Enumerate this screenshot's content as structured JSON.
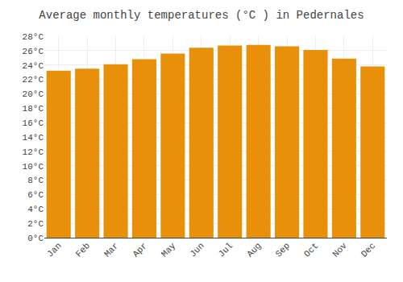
{
  "chart_data": {
    "type": "bar",
    "title": "Average monthly temperatures (°C ) in Pedernales",
    "categories": [
      "Jan",
      "Feb",
      "Mar",
      "Apr",
      "May",
      "Jun",
      "Jul",
      "Aug",
      "Sep",
      "Oct",
      "Nov",
      "Dec"
    ],
    "values": [
      23.2,
      23.5,
      24.1,
      24.8,
      25.6,
      26.4,
      26.7,
      26.8,
      26.6,
      26.1,
      24.9,
      23.8
    ],
    "color": "#E8900A",
    "ylim": [
      0,
      28
    ],
    "yticks": [
      {
        "value": 0,
        "label": "0°C"
      },
      {
        "value": 2,
        "label": "2°C"
      },
      {
        "value": 4,
        "label": "4°C"
      },
      {
        "value": 6,
        "label": "6°C"
      },
      {
        "value": 8,
        "label": "8°C"
      },
      {
        "value": 10,
        "label": "10°C"
      },
      {
        "value": 12,
        "label": "12°C"
      },
      {
        "value": 14,
        "label": "14°C"
      },
      {
        "value": 16,
        "label": "16°C"
      },
      {
        "value": 18,
        "label": "18°C"
      },
      {
        "value": 20,
        "label": "20°C"
      },
      {
        "value": 22,
        "label": "22°C"
      },
      {
        "value": 24,
        "label": "24°C"
      },
      {
        "value": 26,
        "label": "26°C"
      },
      {
        "value": 28,
        "label": "28°C"
      }
    ],
    "grid": true
  }
}
